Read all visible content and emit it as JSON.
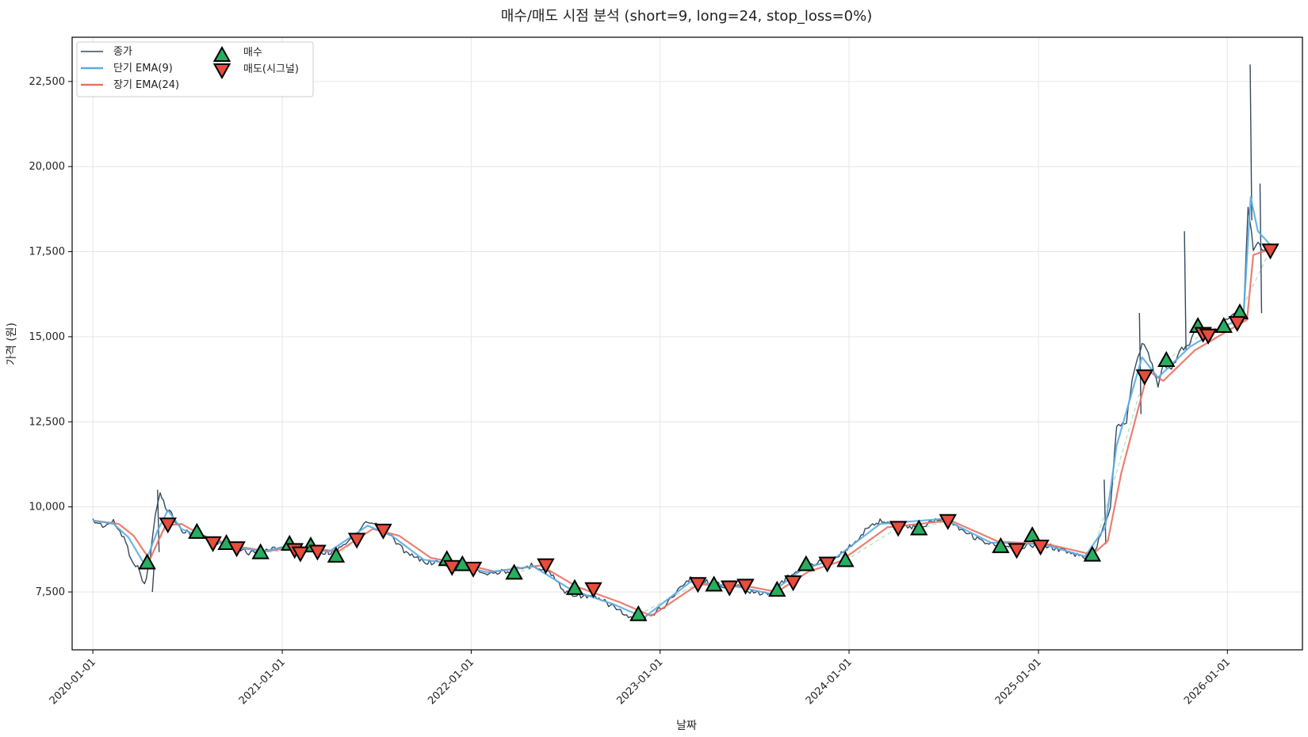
{
  "chart_data": {
    "type": "line",
    "title": "매수/매도 시점 분석 (short=9, long=24, stop_loss=0%)",
    "xlabel": "날짜",
    "ylabel": "가격 (원)",
    "x_range": [
      "2019-11-22",
      "2026-05-26"
    ],
    "ylim": [
      5800,
      23800
    ],
    "x_ticks": [
      "2020-01-01",
      "2021-01-01",
      "2022-01-01",
      "2023-01-01",
      "2024-01-01",
      "2025-01-01",
      "2026-01-01"
    ],
    "y_ticks": [
      7500,
      10000,
      12500,
      15000,
      17500,
      20000,
      22500
    ],
    "y_tick_labels": [
      "7,500",
      "10,000",
      "12,500",
      "15,000",
      "17,500",
      "20,000",
      "22,500"
    ],
    "grid": true,
    "legend_position": "top-left",
    "series": [
      {
        "name": "종가",
        "color": "#34495e",
        "points": [
          [
            "2020-01-01",
            9600
          ],
          [
            "2020-01-20",
            9450
          ],
          [
            "2020-02-10",
            9550
          ],
          [
            "2020-03-01",
            9100
          ],
          [
            "2020-03-15",
            8500
          ],
          [
            "2020-04-01",
            8100
          ],
          [
            "2020-04-10",
            7700
          ],
          [
            "2020-04-20",
            8400
          ],
          [
            "2020-05-01",
            9800
          ],
          [
            "2020-05-10",
            10400
          ],
          [
            "2020-05-20",
            10000
          ],
          [
            "2020-06-01",
            9800
          ],
          [
            "2020-06-20",
            9300
          ],
          [
            "2020-07-15",
            9200
          ],
          [
            "2020-08-10",
            9100
          ],
          [
            "2020-09-10",
            8900
          ],
          [
            "2020-10-01",
            8800
          ],
          [
            "2020-11-01",
            8650
          ],
          [
            "2020-12-01",
            8700
          ],
          [
            "2021-01-10",
            8900
          ],
          [
            "2021-02-01",
            8700
          ],
          [
            "2021-03-01",
            8750
          ],
          [
            "2021-04-01",
            8650
          ],
          [
            "2021-05-15",
            9050
          ],
          [
            "2021-06-15",
            9550
          ],
          [
            "2021-07-01",
            9450
          ],
          [
            "2021-08-01",
            9100
          ],
          [
            "2021-09-01",
            8600
          ],
          [
            "2021-10-01",
            8400
          ],
          [
            "2021-11-01",
            8350
          ],
          [
            "2021-12-01",
            8300
          ],
          [
            "2022-01-10",
            8200
          ],
          [
            "2022-02-01",
            8050
          ],
          [
            "2022-03-01",
            8100
          ],
          [
            "2022-04-01",
            8150
          ],
          [
            "2022-05-01",
            8300
          ],
          [
            "2022-06-01",
            8100
          ],
          [
            "2022-07-01",
            7500
          ],
          [
            "2022-08-01",
            7400
          ],
          [
            "2022-09-01",
            7300
          ],
          [
            "2022-10-01",
            7100
          ],
          [
            "2022-11-01",
            6750
          ],
          [
            "2022-12-01",
            6700
          ],
          [
            "2023-01-10",
            7100
          ],
          [
            "2023-02-01",
            7500
          ],
          [
            "2023-03-01",
            7900
          ],
          [
            "2023-04-01",
            7800
          ],
          [
            "2023-05-01",
            7700
          ],
          [
            "2023-06-01",
            7650
          ],
          [
            "2023-07-01",
            7500
          ],
          [
            "2023-08-01",
            7400
          ],
          [
            "2023-09-01",
            7900
          ],
          [
            "2023-10-01",
            8200
          ],
          [
            "2023-11-01",
            8350
          ],
          [
            "2023-12-01",
            8500
          ],
          [
            "2024-01-10",
            8900
          ],
          [
            "2024-02-01",
            9300
          ],
          [
            "2024-03-01",
            9600
          ],
          [
            "2024-04-01",
            9500
          ],
          [
            "2024-05-01",
            9400
          ],
          [
            "2024-06-01",
            9500
          ],
          [
            "2024-07-01",
            9700
          ],
          [
            "2024-08-01",
            9400
          ],
          [
            "2024-09-01",
            9100
          ],
          [
            "2024-10-01",
            8900
          ],
          [
            "2024-11-01",
            8800
          ],
          [
            "2024-12-01",
            8850
          ],
          [
            "2025-01-10",
            8900
          ],
          [
            "2025-02-01",
            8800
          ],
          [
            "2025-03-01",
            8650
          ],
          [
            "2025-04-01",
            8500
          ],
          [
            "2025-04-20",
            8700
          ],
          [
            "2025-05-01",
            9200
          ],
          [
            "2025-05-20",
            10000
          ],
          [
            "2025-06-01",
            12400
          ],
          [
            "2025-06-20",
            12500
          ],
          [
            "2025-07-01",
            13800
          ],
          [
            "2025-07-20",
            14800
          ],
          [
            "2025-08-01",
            14500
          ],
          [
            "2025-08-20",
            13600
          ],
          [
            "2025-09-01",
            14200
          ],
          [
            "2025-09-15",
            14000
          ],
          [
            "2025-10-01",
            14600
          ],
          [
            "2025-10-20",
            14800
          ],
          [
            "2025-11-01",
            15200
          ],
          [
            "2025-11-20",
            15000
          ],
          [
            "2025-12-01",
            15100
          ],
          [
            "2025-12-20",
            15300
          ],
          [
            "2026-01-10",
            15700
          ],
          [
            "2026-02-01",
            15600
          ],
          [
            "2026-02-10",
            18800
          ],
          [
            "2026-02-20",
            17600
          ],
          [
            "2026-03-01",
            17800
          ],
          [
            "2026-03-15",
            17500
          ],
          [
            "2026-03-25",
            17600
          ]
        ],
        "spikes": [
          [
            "2020-04-25",
            7500
          ],
          [
            "2020-05-05",
            10500
          ],
          [
            "2025-05-08",
            10800
          ],
          [
            "2025-07-15",
            15700
          ],
          [
            "2025-10-10",
            18100
          ],
          [
            "2026-02-14",
            23000
          ],
          [
            "2026-03-05",
            19500
          ]
        ]
      },
      {
        "name": "단기 EMA(9)",
        "color": "#5dade2",
        "points": [
          [
            "2020-01-01",
            9600
          ],
          [
            "2020-02-10",
            9500
          ],
          [
            "2020-03-10",
            9100
          ],
          [
            "2020-04-10",
            8300
          ],
          [
            "2020-05-05",
            9300
          ],
          [
            "2020-05-25",
            9900
          ],
          [
            "2020-06-20",
            9350
          ],
          [
            "2020-08-01",
            9100
          ],
          [
            "2020-10-01",
            8800
          ],
          [
            "2020-12-01",
            8700
          ],
          [
            "2021-01-10",
            8850
          ],
          [
            "2021-03-01",
            8750
          ],
          [
            "2021-04-01",
            8680
          ],
          [
            "2021-06-15",
            9450
          ],
          [
            "2021-08-01",
            9150
          ],
          [
            "2021-10-01",
            8450
          ],
          [
            "2021-12-01",
            8320
          ],
          [
            "2022-02-01",
            8080
          ],
          [
            "2022-05-01",
            8250
          ],
          [
            "2022-07-15",
            7550
          ],
          [
            "2022-10-01",
            7150
          ],
          [
            "2022-12-01",
            6750
          ],
          [
            "2023-03-01",
            7800
          ],
          [
            "2023-06-01",
            7650
          ],
          [
            "2023-08-01",
            7450
          ],
          [
            "2023-10-01",
            8150
          ],
          [
            "2023-12-01",
            8450
          ],
          [
            "2024-03-01",
            9500
          ],
          [
            "2024-07-01",
            9650
          ],
          [
            "2024-10-01",
            8950
          ],
          [
            "2025-01-10",
            8900
          ],
          [
            "2025-04-01",
            8550
          ],
          [
            "2025-05-10",
            9400
          ],
          [
            "2025-06-01",
            11800
          ],
          [
            "2025-07-20",
            14400
          ],
          [
            "2025-08-20",
            13800
          ],
          [
            "2025-10-20",
            14700
          ],
          [
            "2025-12-20",
            15250
          ],
          [
            "2026-02-01",
            15600
          ],
          [
            "2026-02-15",
            19100
          ],
          [
            "2026-03-01",
            18100
          ],
          [
            "2026-03-25",
            17700
          ]
        ]
      },
      {
        "name": "장기 EMA(24)",
        "color": "#ec7063",
        "points": [
          [
            "2020-01-01",
            9600
          ],
          [
            "2020-02-20",
            9500
          ],
          [
            "2020-03-20",
            9150
          ],
          [
            "2020-04-20",
            8450
          ],
          [
            "2020-05-20",
            9450
          ],
          [
            "2020-06-20",
            9500
          ],
          [
            "2020-08-01",
            9150
          ],
          [
            "2020-10-01",
            8850
          ],
          [
            "2020-12-01",
            8700
          ],
          [
            "2021-01-20",
            8800
          ],
          [
            "2021-03-10",
            8750
          ],
          [
            "2021-04-20",
            8700
          ],
          [
            "2021-06-25",
            9350
          ],
          [
            "2021-08-15",
            9150
          ],
          [
            "2021-10-15",
            8500
          ],
          [
            "2021-12-15",
            8330
          ],
          [
            "2022-02-15",
            8100
          ],
          [
            "2022-05-15",
            8280
          ],
          [
            "2022-07-25",
            7650
          ],
          [
            "2022-10-15",
            7200
          ],
          [
            "2022-12-15",
            6800
          ],
          [
            "2023-03-15",
            7720
          ],
          [
            "2023-06-15",
            7680
          ],
          [
            "2023-08-15",
            7500
          ],
          [
            "2023-10-15",
            8100
          ],
          [
            "2023-12-15",
            8400
          ],
          [
            "2024-03-15",
            9400
          ],
          [
            "2024-07-15",
            9600
          ],
          [
            "2024-10-15",
            8980
          ],
          [
            "2025-01-20",
            8900
          ],
          [
            "2025-04-15",
            8600
          ],
          [
            "2025-05-15",
            9000
          ],
          [
            "2025-06-10",
            11000
          ],
          [
            "2025-08-01",
            14000
          ],
          [
            "2025-08-30",
            13700
          ],
          [
            "2025-10-30",
            14600
          ],
          [
            "2025-12-30",
            15150
          ],
          [
            "2026-02-08",
            15500
          ],
          [
            "2026-02-20",
            17400
          ],
          [
            "2026-03-10",
            17500
          ],
          [
            "2026-03-25",
            17550
          ]
        ]
      }
    ],
    "buy_signals": {
      "name": "매수",
      "color": "#27ae60",
      "points": [
        [
          "2020-04-15",
          8350
        ],
        [
          "2020-07-20",
          9250
        ],
        [
          "2020-09-15",
          8920
        ],
        [
          "2020-11-20",
          8650
        ],
        [
          "2021-01-15",
          8900
        ],
        [
          "2021-02-25",
          8850
        ],
        [
          "2021-04-15",
          8550
        ],
        [
          "2021-11-15",
          8450
        ],
        [
          "2021-12-15",
          8300
        ],
        [
          "2022-03-25",
          8050
        ],
        [
          "2022-07-20",
          7600
        ],
        [
          "2022-11-20",
          6830
        ],
        [
          "2023-04-15",
          7700
        ],
        [
          "2023-08-15",
          7550
        ],
        [
          "2023-10-10",
          8300
        ],
        [
          "2023-12-25",
          8420
        ],
        [
          "2024-05-15",
          9350
        ],
        [
          "2024-10-20",
          8830
        ],
        [
          "2024-12-20",
          9150
        ],
        [
          "2025-04-15",
          8580
        ],
        [
          "2025-09-05",
          14300
        ],
        [
          "2025-11-05",
          15300
        ],
        [
          "2025-12-25",
          15300
        ],
        [
          "2026-01-25",
          15700
        ]
      ]
    },
    "sell_signals": {
      "name": "매도(시그널)",
      "color": "#e74c3c",
      "points": [
        [
          "2020-05-25",
          9500
        ],
        [
          "2020-08-20",
          8950
        ],
        [
          "2020-10-05",
          8800
        ],
        [
          "2021-01-25",
          8750
        ],
        [
          "2021-02-05",
          8650
        ],
        [
          "2021-03-10",
          8700
        ],
        [
          "2021-05-25",
          9050
        ],
        [
          "2021-07-15",
          9320
        ],
        [
          "2021-11-25",
          8250
        ],
        [
          "2022-01-05",
          8200
        ],
        [
          "2022-05-25",
          8300
        ],
        [
          "2022-08-25",
          7600
        ],
        [
          "2023-03-15",
          7750
        ],
        [
          "2023-05-15",
          7650
        ],
        [
          "2023-06-15",
          7700
        ],
        [
          "2023-09-15",
          7800
        ],
        [
          "2023-11-20",
          8350
        ],
        [
          "2024-04-05",
          9400
        ],
        [
          "2024-07-10",
          9600
        ],
        [
          "2024-11-20",
          8750
        ],
        [
          "2025-01-05",
          8850
        ],
        [
          "2025-07-25",
          13850
        ],
        [
          "2025-11-15",
          15100
        ],
        [
          "2025-11-25",
          15050
        ],
        [
          "2026-01-20",
          15420
        ],
        [
          "2026-03-25",
          17550
        ]
      ]
    }
  }
}
